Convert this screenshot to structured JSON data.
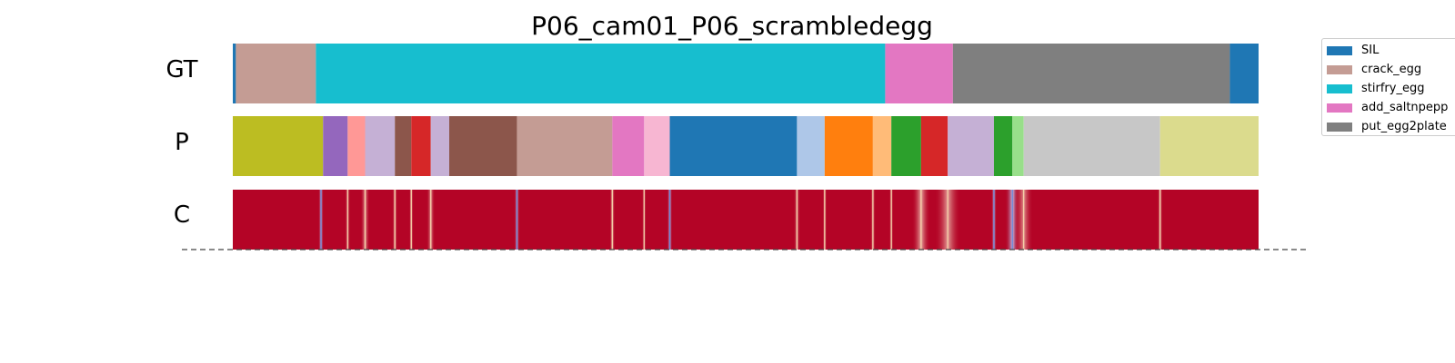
{
  "chart_data": {
    "type": "segmentation-timeline",
    "title": "P06_cam01_P06_scrambledegg",
    "xlim": [
      0,
      1000
    ],
    "legend": {
      "placement": "top-right",
      "entries": [
        {
          "label": "SIL",
          "color": "#1f77b4"
        },
        {
          "label": "crack_egg",
          "color": "#c49c94"
        },
        {
          "label": "stirfry_egg",
          "color": "#17becf"
        },
        {
          "label": "add_saltnpepp",
          "color": "#e377c2"
        },
        {
          "label": "put_egg2plate",
          "color": "#7f7f7f"
        }
      ]
    },
    "rows": [
      {
        "label": "GT",
        "kind": "segments",
        "segments": [
          {
            "start": 0,
            "end": 3,
            "color": "#1f77b4"
          },
          {
            "start": 3,
            "end": 81,
            "color": "#c49c94"
          },
          {
            "start": 81,
            "end": 636,
            "color": "#17becf"
          },
          {
            "start": 636,
            "end": 702,
            "color": "#e377c2"
          },
          {
            "start": 702,
            "end": 972,
            "color": "#7f7f7f"
          },
          {
            "start": 972,
            "end": 1000,
            "color": "#1f77b4"
          }
        ]
      },
      {
        "label": "P",
        "kind": "segments",
        "segments": [
          {
            "start": 0,
            "end": 88,
            "color": "#bcbd22"
          },
          {
            "start": 88,
            "end": 112,
            "color": "#9467bd"
          },
          {
            "start": 112,
            "end": 129,
            "color": "#ff9896"
          },
          {
            "start": 129,
            "end": 158,
            "color": "#c5b0d5"
          },
          {
            "start": 158,
            "end": 174,
            "color": "#8c564b"
          },
          {
            "start": 174,
            "end": 193,
            "color": "#d62728"
          },
          {
            "start": 193,
            "end": 211,
            "color": "#c5b0d5"
          },
          {
            "start": 211,
            "end": 277,
            "color": "#8c564b"
          },
          {
            "start": 277,
            "end": 370,
            "color": "#c49c94"
          },
          {
            "start": 370,
            "end": 401,
            "color": "#e377c2"
          },
          {
            "start": 401,
            "end": 426,
            "color": "#f7b6d2"
          },
          {
            "start": 426,
            "end": 550,
            "color": "#1f77b4"
          },
          {
            "start": 550,
            "end": 577,
            "color": "#aec7e8"
          },
          {
            "start": 577,
            "end": 624,
            "color": "#ff7f0e"
          },
          {
            "start": 624,
            "end": 642,
            "color": "#ffbb78"
          },
          {
            "start": 642,
            "end": 671,
            "color": "#2ca02c"
          },
          {
            "start": 671,
            "end": 697,
            "color": "#d62728"
          },
          {
            "start": 697,
            "end": 742,
            "color": "#c5b0d5"
          },
          {
            "start": 742,
            "end": 760,
            "color": "#2ca02c"
          },
          {
            "start": 760,
            "end": 771,
            "color": "#98df8a"
          },
          {
            "start": 771,
            "end": 904,
            "color": "#c7c7c7"
          },
          {
            "start": 904,
            "end": 1000,
            "color": "#dbdb8d"
          }
        ]
      },
      {
        "label": "C",
        "kind": "confidence",
        "base_color": "#b40426",
        "low_color": "#3b4cc0",
        "dips": [
          {
            "pos": 86,
            "width": 5,
            "value": 0.2
          },
          {
            "pos": 112,
            "width": 5,
            "value": 0.6
          },
          {
            "pos": 129,
            "width": 9,
            "value": 0.5
          },
          {
            "pos": 158,
            "width": 5,
            "value": 0.4
          },
          {
            "pos": 174,
            "width": 4,
            "value": 0.3
          },
          {
            "pos": 193,
            "width": 8,
            "value": 0.5
          },
          {
            "pos": 277,
            "width": 5,
            "value": 0.1
          },
          {
            "pos": 370,
            "width": 5,
            "value": 0.3
          },
          {
            "pos": 401,
            "width": 4,
            "value": 0.5
          },
          {
            "pos": 426,
            "width": 5,
            "value": 0.2
          },
          {
            "pos": 550,
            "width": 6,
            "value": 0.5
          },
          {
            "pos": 577,
            "width": 4,
            "value": 0.3
          },
          {
            "pos": 624,
            "width": 5,
            "value": 0.6
          },
          {
            "pos": 642,
            "width": 4,
            "value": 0.5
          },
          {
            "pos": 671,
            "width": 18,
            "value": 0.4
          },
          {
            "pos": 697,
            "width": 25,
            "value": 0.5
          },
          {
            "pos": 742,
            "width": 5,
            "value": 0.1
          },
          {
            "pos": 760,
            "width": 14,
            "value": 0.05
          },
          {
            "pos": 771,
            "width": 18,
            "value": 0.6
          },
          {
            "pos": 904,
            "width": 5,
            "value": 0.3
          }
        ]
      }
    ]
  }
}
